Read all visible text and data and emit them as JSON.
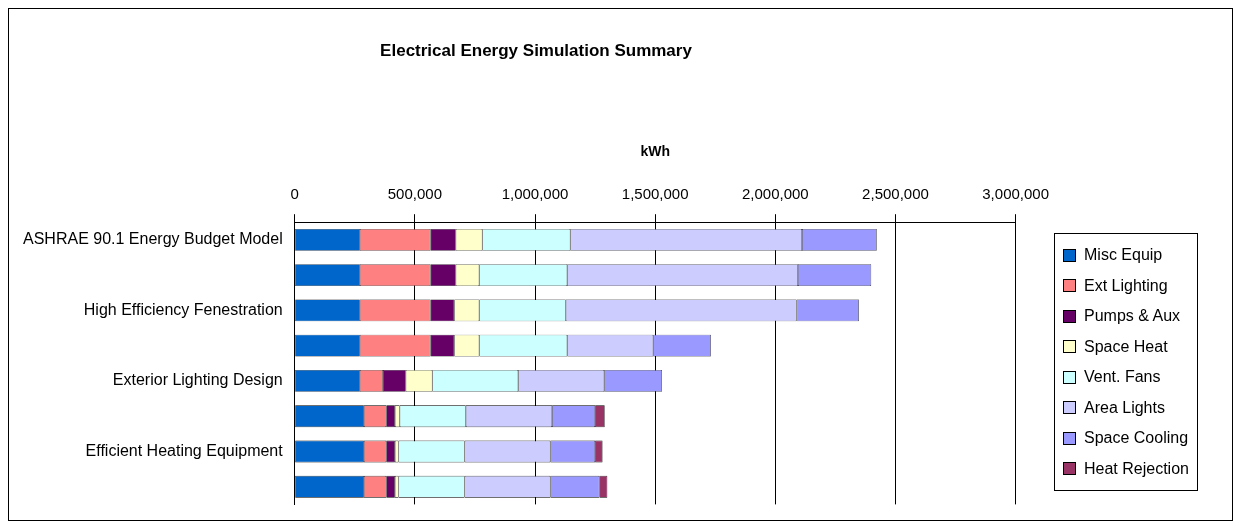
{
  "chart_data": {
    "type": "bar",
    "orientation": "horizontal",
    "stacked": true,
    "title": "Electrical Energy Simulation Summary",
    "xlabel": "kWh",
    "categories": [
      "ASHRAE 90.1 Energy Budget Model",
      null,
      "High Efficiency Fenestration",
      null,
      "Exterior Lighting Design",
      null,
      "Efficient Heating Equipment",
      null
    ],
    "series": [
      {
        "name": "Misc Equip",
        "color": "#0066cc",
        "values": [
          271000,
          271000,
          271000,
          271000,
          271000,
          288000,
          288000,
          288000
        ]
      },
      {
        "name": "Ext Lighting",
        "color": "#ff8080",
        "values": [
          294000,
          294000,
          294000,
          294000,
          96000,
          93000,
          93000,
          93000
        ]
      },
      {
        "name": "Pumps & Aux",
        "color": "#660066",
        "values": [
          105000,
          105000,
          99000,
          99000,
          95000,
          36000,
          36000,
          36000
        ]
      },
      {
        "name": "Space Heat",
        "color": "#ffffcc",
        "values": [
          111000,
          98000,
          104000,
          104000,
          111000,
          20000,
          15000,
          15000
        ]
      },
      {
        "name": "Vent. Fans",
        "color": "#ccffff",
        "values": [
          366000,
          366000,
          360000,
          366000,
          357000,
          275000,
          275000,
          275000
        ]
      },
      {
        "name": "Area Lights",
        "color": "#ccccff",
        "values": [
          964000,
          960000,
          960000,
          358000,
          358000,
          359000,
          357000,
          357000
        ]
      },
      {
        "name": "Space Cooling",
        "color": "#9999ff",
        "values": [
          311000,
          305000,
          260000,
          240000,
          240000,
          179000,
          186000,
          204000
        ]
      },
      {
        "name": "Heat Rejection",
        "color": "#993366",
        "values": [
          0,
          0,
          0,
          0,
          0,
          40000,
          31000,
          33000
        ]
      }
    ],
    "xlim": [
      0,
      3000000
    ],
    "xticks": [
      0,
      {
        "value": 500000,
        "label": "500,000"
      },
      {
        "value": 1000000,
        "label": "1,000,000"
      },
      {
        "value": 1500000,
        "label": "1,500,000"
      },
      {
        "value": 2000000,
        "label": "2,000,000"
      },
      {
        "value": 2500000,
        "label": "2,500,000"
      },
      {
        "value": 3000000,
        "label": "3,000,000"
      }
    ],
    "grid": "x",
    "legend": "right"
  }
}
